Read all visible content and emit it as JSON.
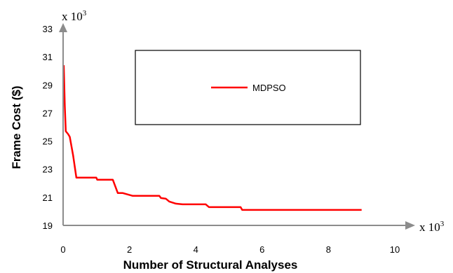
{
  "chart_data": {
    "type": "line",
    "title": "",
    "xlabel": "Number of Structural Analyses",
    "ylabel": "Frame Cost ($)",
    "x_multiplier": {
      "base": "x 10",
      "exp": "3"
    },
    "y_multiplier": {
      "base": "x 10",
      "exp": "3"
    },
    "xlim": [
      0,
      10
    ],
    "ylim": [
      19,
      33
    ],
    "x_ticks": [
      "0",
      "2",
      "4",
      "6",
      "8",
      "10"
    ],
    "y_ticks": [
      "19",
      "21",
      "23",
      "25",
      "27",
      "29",
      "31",
      "33"
    ],
    "legend": {
      "position": "top-center",
      "entries": [
        "MDPSO"
      ]
    },
    "grid": false,
    "series": [
      {
        "name": "MDPSO",
        "color": "#ff0000",
        "points": [
          [
            0.02,
            30.4
          ],
          [
            0.05,
            27.5
          ],
          [
            0.08,
            25.7
          ],
          [
            0.15,
            25.5
          ],
          [
            0.2,
            25.3
          ],
          [
            0.3,
            24.0
          ],
          [
            0.4,
            22.4
          ],
          [
            1.0,
            22.4
          ],
          [
            1.03,
            22.25
          ],
          [
            1.5,
            22.25
          ],
          [
            1.65,
            21.3
          ],
          [
            1.8,
            21.3
          ],
          [
            1.95,
            21.2
          ],
          [
            2.1,
            21.1
          ],
          [
            2.6,
            21.1
          ],
          [
            2.9,
            21.1
          ],
          [
            2.95,
            20.95
          ],
          [
            3.1,
            20.9
          ],
          [
            3.2,
            20.7
          ],
          [
            3.4,
            20.55
          ],
          [
            3.6,
            20.5
          ],
          [
            3.8,
            20.5
          ],
          [
            4.3,
            20.5
          ],
          [
            4.4,
            20.3
          ],
          [
            4.5,
            20.3
          ],
          [
            5.35,
            20.3
          ],
          [
            5.4,
            20.1
          ],
          [
            9.0,
            20.1
          ]
        ]
      }
    ]
  }
}
